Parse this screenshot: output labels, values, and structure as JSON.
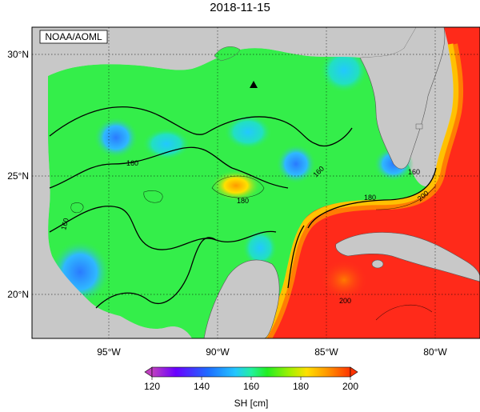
{
  "title": "2018-11-15",
  "credit": "NOAA/AOML",
  "lat_labels": [
    "30°N",
    "25°N",
    "20°N"
  ],
  "lon_labels": [
    "95°W",
    "90°W",
    "85°W",
    "80°W"
  ],
  "colorbar": {
    "label": "SH [cm]",
    "ticks": [
      "120",
      "140",
      "160",
      "180",
      "200"
    ],
    "colors": [
      "#c040c0",
      "#6a00ff",
      "#1e6bff",
      "#23c6ff",
      "#22f0a0",
      "#22ee22",
      "#a8f000",
      "#ffe000",
      "#ff9900",
      "#ff3300"
    ]
  },
  "contour_labels": [
    "160",
    "160",
    "160",
    "180",
    "160",
    "180",
    "200",
    "200"
  ],
  "colors": {
    "land": "#c8c8c8",
    "gulf_base": "#34ee4a",
    "loop_current": "#ff2a1a",
    "contour": "#000000"
  },
  "marker_icon": "triangle-marker-icon"
}
